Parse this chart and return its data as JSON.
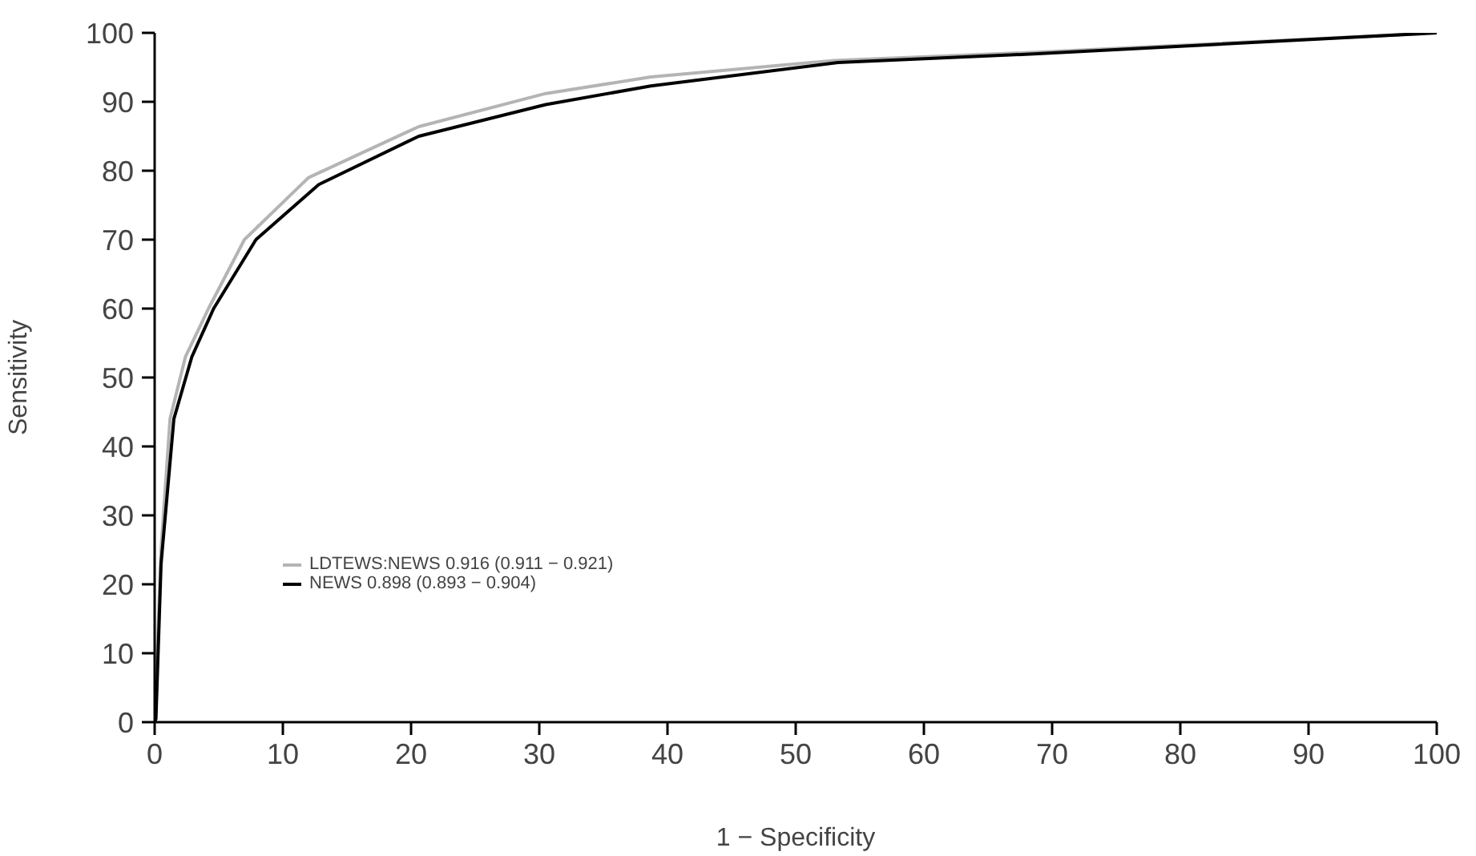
{
  "chart_data": {
    "type": "line",
    "xlabel": "1 − Specificity",
    "ylabel": "Sensitivity",
    "xlim": [
      0,
      100
    ],
    "ylim": [
      0,
      100
    ],
    "xticks": [
      0,
      10,
      20,
      30,
      40,
      50,
      60,
      70,
      80,
      90,
      100
    ],
    "yticks": [
      0,
      10,
      20,
      30,
      40,
      50,
      60,
      70,
      80,
      90,
      100
    ],
    "grid": false,
    "legend": "bottom left",
    "marker": "none",
    "line_style": "solid",
    "series": [
      {
        "name": "LDTEWS:NEWS 0.916 (0.911 − 0.921)",
        "color": "#b4b4b4",
        "x": [
          0,
          0.5,
          1.2,
          2.4,
          4.2,
          7,
          12,
          20.6,
          30.5,
          38.7,
          53,
          69,
          100
        ],
        "values": [
          0,
          25,
          44,
          53,
          60,
          70,
          79,
          86.4,
          91.2,
          93.6,
          96,
          97.2,
          100
        ]
      },
      {
        "name": "NEWS 0.898 (0.893 − 0.904)",
        "color": "#000000",
        "x": [
          0,
          0.1,
          0.5,
          1.5,
          2.9,
          4.6,
          7.9,
          12.8,
          20.6,
          30.5,
          38.7,
          53.3,
          69.2,
          100
        ],
        "values": [
          0,
          0.5,
          23,
          44,
          53,
          60,
          70,
          78,
          85,
          89.6,
          92.3,
          95.7,
          97,
          100
        ]
      }
    ]
  }
}
